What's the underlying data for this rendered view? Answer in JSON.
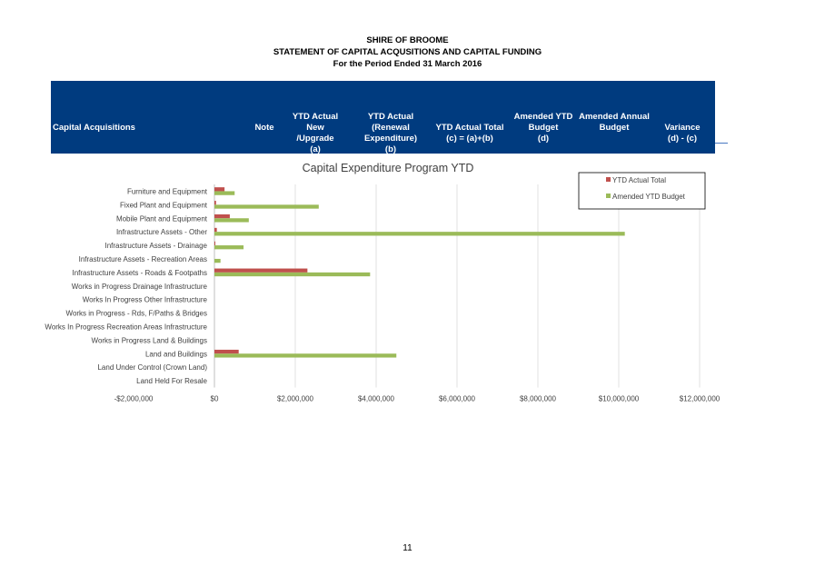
{
  "header": {
    "org": "SHIRE OF BROOME",
    "statement": "STATEMENT OF CAPITAL ACQUSITIONS AND CAPITAL FUNDING",
    "period": "For the Period Ended 31 March 2016"
  },
  "table_header": {
    "capital_acquisitions": "Capital Acquisitions",
    "note": "Note",
    "ytd_new_1": "YTD Actual New",
    "ytd_new_2": "/Upgrade",
    "ytd_new_3": "(a)",
    "ytd_renewal_1": "YTD Actual (Renewal",
    "ytd_renewal_2": "Expenditure)",
    "ytd_renewal_3": "(b)",
    "ytd_total_1": "YTD Actual Total",
    "ytd_total_2": "(c) = (a)+(b)",
    "amended_ytd_1": "Amended YTD",
    "amended_ytd_2": "Budget",
    "amended_ytd_3": "(d)",
    "amended_annual_1": "Amended Annual",
    "amended_annual_2": "Budget",
    "variance_1": "Variance",
    "variance_2": "(d) - (c)"
  },
  "colors": {
    "banner": "#003b7f",
    "series_actual": "#c0504d",
    "series_budget": "#9bbb59"
  },
  "chart_data": {
    "type": "bar",
    "orientation": "horizontal",
    "title": "Capital Expenditure Program YTD",
    "categories": [
      "Furniture and Equipment",
      "Fixed Plant and Equipment",
      "Mobile Plant and Equipment",
      "Infrastructure Assets - Other",
      "Infrastructure Assets - Drainage",
      "Infrastructure Assets - Recreation Areas",
      "Infrastructure Assets - Roads & Footpaths",
      "Works in Progress Drainage Infrastructure",
      "Works In Progress Other Infrastructure",
      "Works in Progress - Rds, F/Paths & Bridges",
      "Works In Progress Recreation Areas Infrastructure",
      "Works in Progress Land & Buildings",
      "Land and Buildings",
      "Land Under Control (Crown Land)",
      "Land Held For Resale"
    ],
    "series": [
      {
        "name": "YTD Actual Total",
        "values": [
          250000,
          40000,
          380000,
          60000,
          10000,
          0,
          2300000,
          0,
          0,
          0,
          0,
          0,
          600000,
          0,
          0
        ]
      },
      {
        "name": "Amended YTD Budget",
        "values": [
          500000,
          2580000,
          850000,
          10150000,
          720000,
          150000,
          3850000,
          0,
          0,
          0,
          0,
          0,
          4500000,
          0,
          0
        ]
      }
    ],
    "xlim": [
      -2000000,
      12000000
    ],
    "xticks": [
      -2000000,
      0,
      2000000,
      4000000,
      6000000,
      8000000,
      10000000,
      12000000
    ],
    "xtick_labels": [
      "-$2,000,000",
      "$0",
      "$2,000,000",
      "$4,000,000",
      "$6,000,000",
      "$8,000,000",
      "$10,000,000",
      "$12,000,000"
    ],
    "grid": true,
    "legend_position": "top-right"
  },
  "page_number": "11"
}
